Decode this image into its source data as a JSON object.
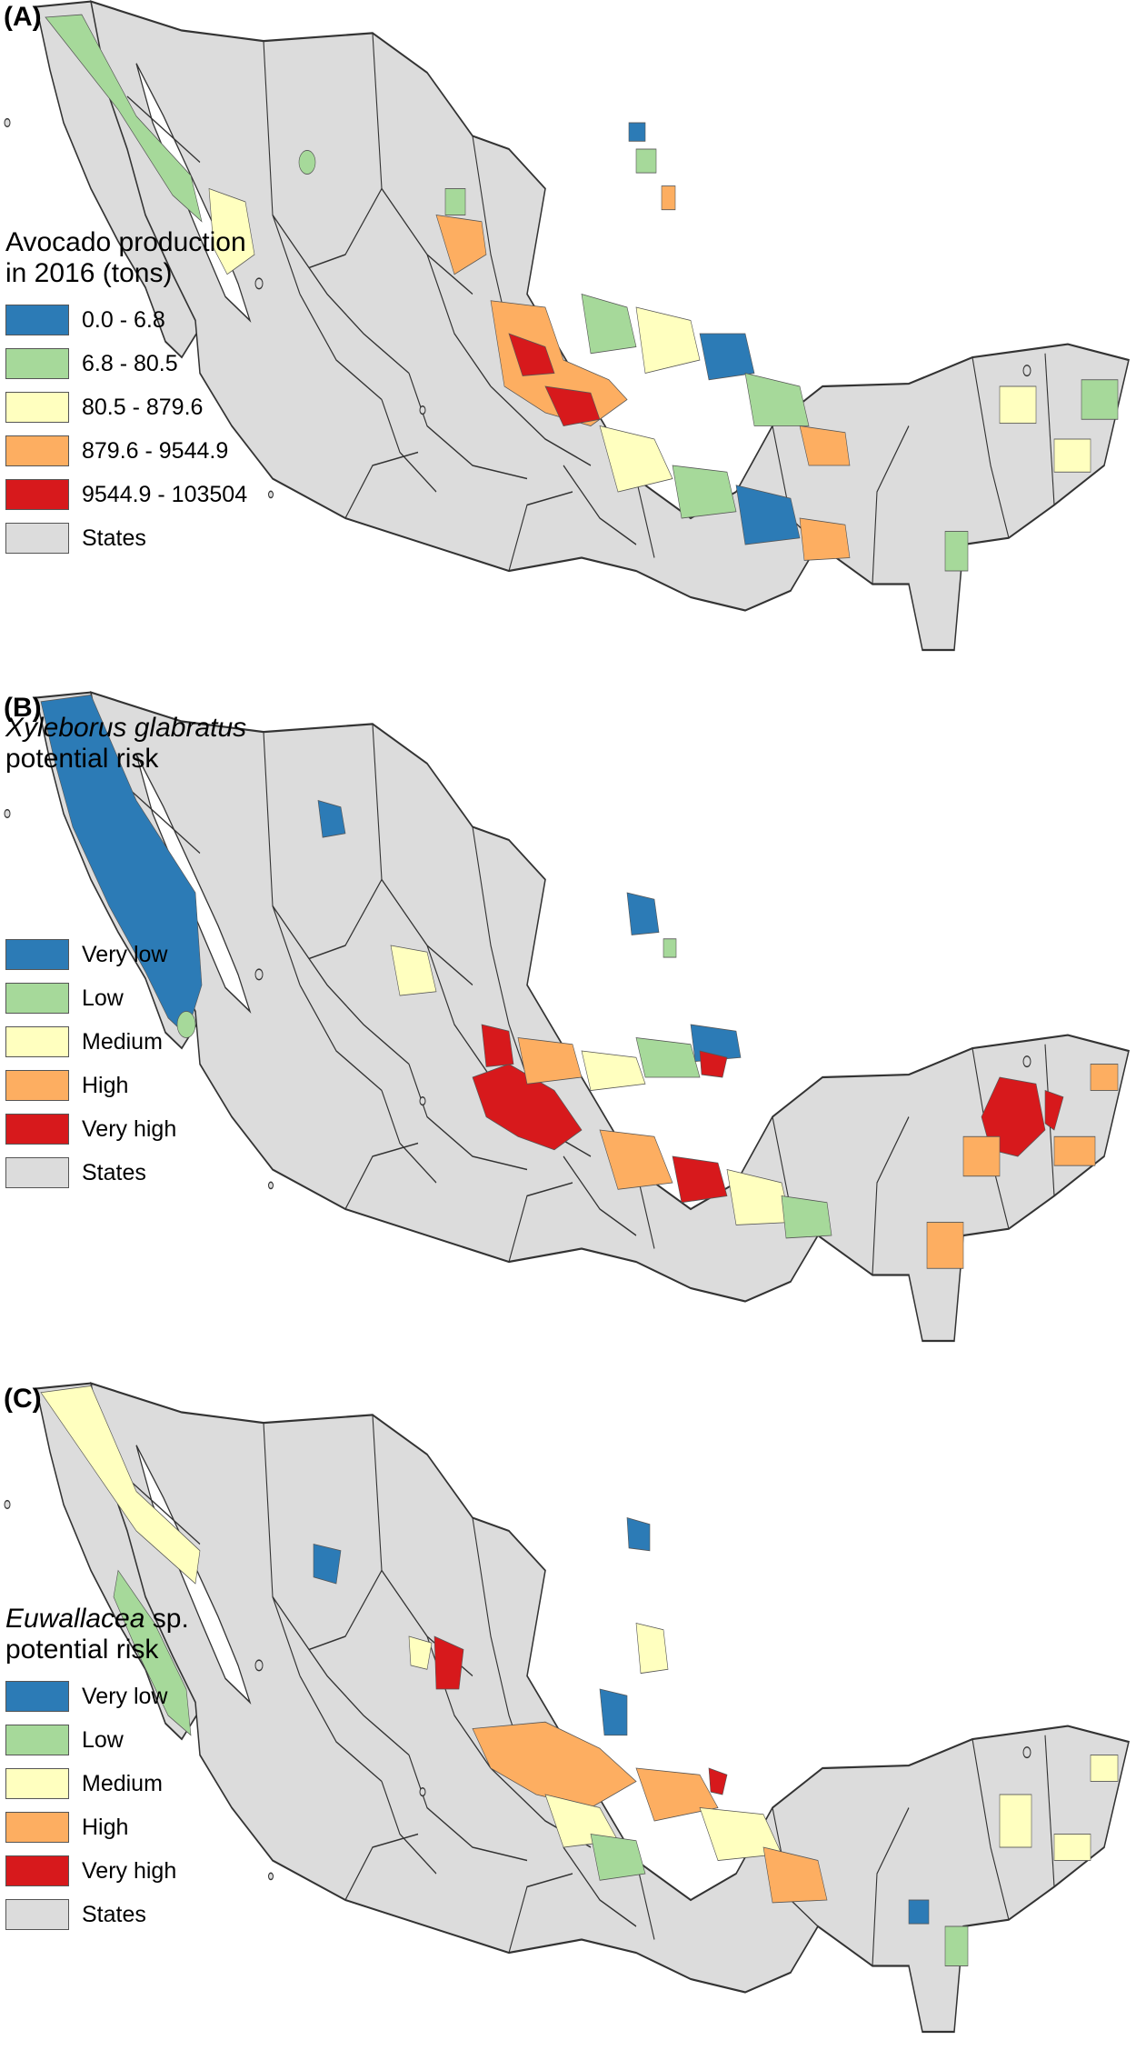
{
  "colors": {
    "very_low": "#2c7bb6",
    "low": "#a6d99a",
    "medium": "#ffffbf",
    "high": "#fdae61",
    "very_high": "#d7191c",
    "states": "#dcdcdc",
    "border": "#333333"
  },
  "panels": [
    {
      "label": "(A)",
      "legend_title_line1": "Avocado production",
      "legend_title_line2": "in 2016 (tons)",
      "legend": [
        {
          "label": "0.0 - 6.8",
          "color": "#2c7bb6"
        },
        {
          "label": "6.8 - 80.5",
          "color": "#a6d99a"
        },
        {
          "label": "80.5 - 879.6",
          "color": "#ffffbf"
        },
        {
          "label": "879.6 - 9544.9",
          "color": "#fdae61"
        },
        {
          "label": "9544.9 - 103504",
          "color": "#d7191c"
        },
        {
          "label": "States",
          "color": "#dcdcdc"
        }
      ]
    },
    {
      "label": "(B)",
      "legend_title_italic": "Xyleborus glabratus",
      "legend_title_line2": "potential risk",
      "legend": [
        {
          "label": "Very low",
          "color": "#2c7bb6"
        },
        {
          "label": "Low",
          "color": "#a6d99a"
        },
        {
          "label": "Medium",
          "color": "#ffffbf"
        },
        {
          "label": "High",
          "color": "#fdae61"
        },
        {
          "label": "Very high",
          "color": "#d7191c"
        },
        {
          "label": "States",
          "color": "#dcdcdc"
        }
      ]
    },
    {
      "label": "(C)",
      "legend_title_italic": "Euwallacea",
      "legend_title_rest": " sp.",
      "legend_title_line2": "potential risk",
      "legend": [
        {
          "label": "Very low",
          "color": "#2c7bb6"
        },
        {
          "label": "Low",
          "color": "#a6d99a"
        },
        {
          "label": "Medium",
          "color": "#ffffbf"
        },
        {
          "label": "High",
          "color": "#fdae61"
        },
        {
          "label": "Very high",
          "color": "#d7191c"
        },
        {
          "label": "States",
          "color": "#dcdcdc"
        }
      ]
    }
  ]
}
